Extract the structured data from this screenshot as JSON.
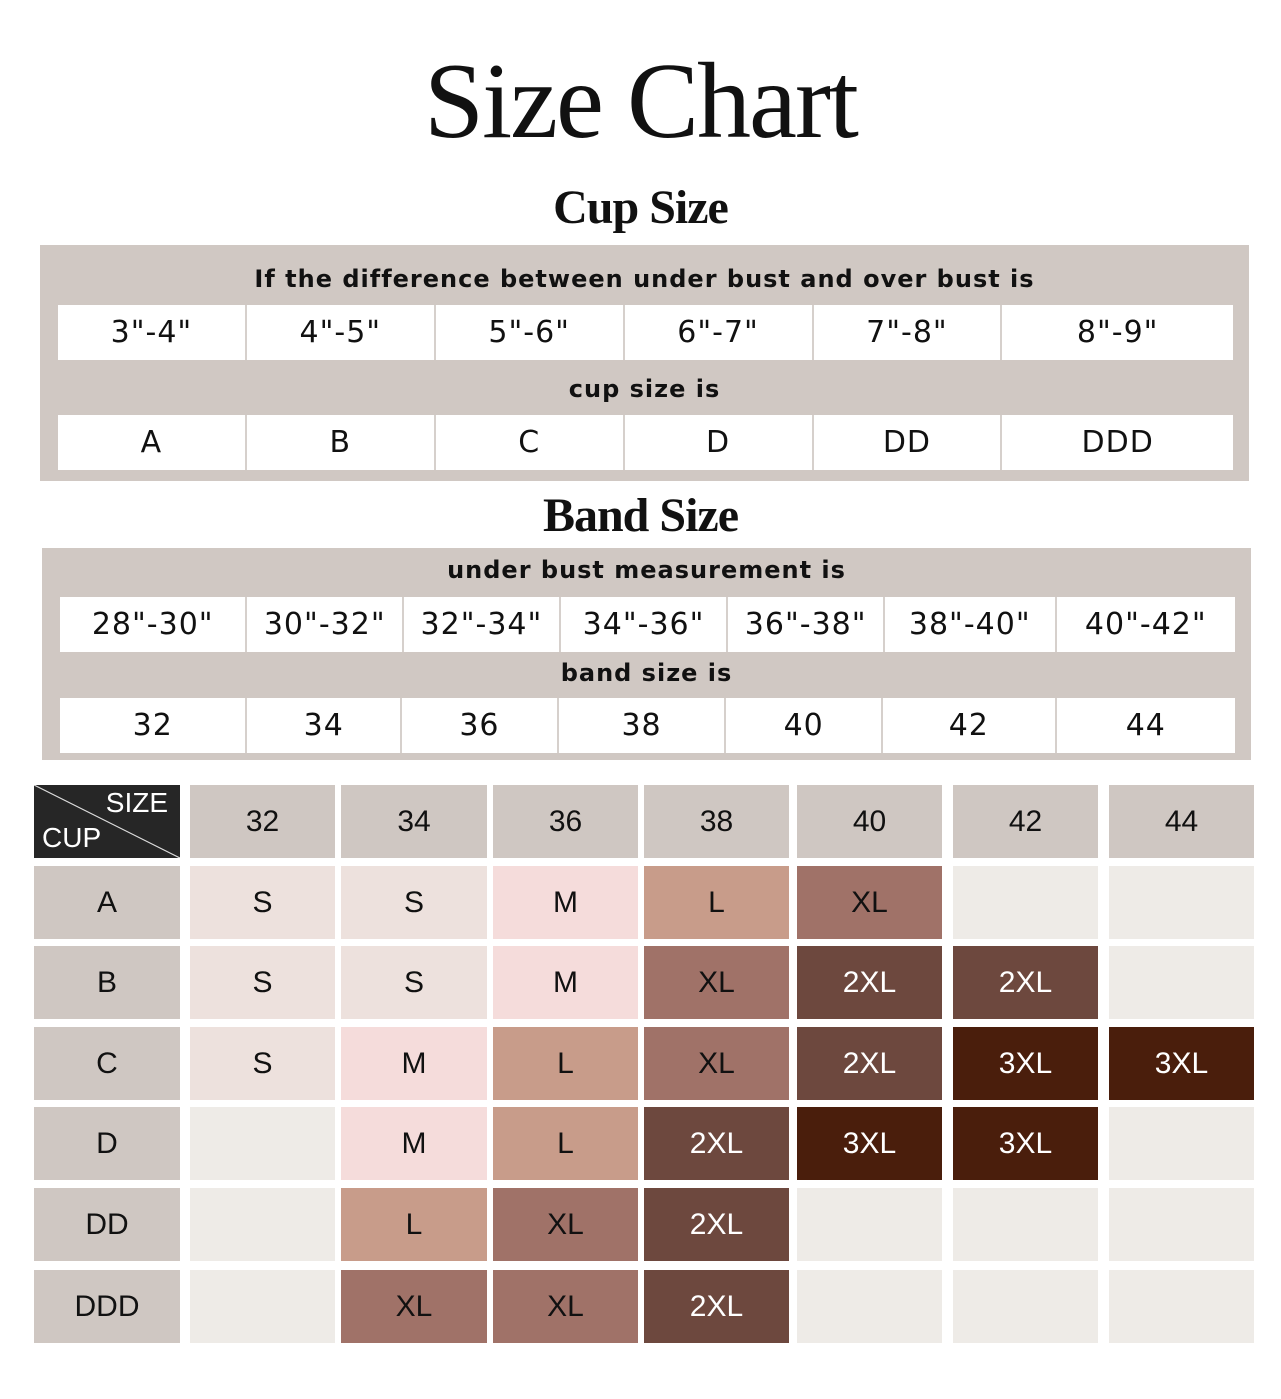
{
  "title": "Size Chart",
  "cup_section": {
    "heading": "Cup Size",
    "difference_label": "If the difference between under bust and over bust is",
    "differences": [
      "3\"-4\"",
      "4\"-5\"",
      "5\"-6\"",
      "6\"-7\"",
      "7\"-8\"",
      "8\"-9\""
    ],
    "result_label": "cup size is",
    "cups": [
      "A",
      "B",
      "C",
      "D",
      "DD",
      "DDD"
    ]
  },
  "band_section": {
    "heading": "Band Size",
    "measurement_label": "under bust measurement is",
    "measurements": [
      "28\"-30\"",
      "30\"-32\"",
      "32\"-34\"",
      "34\"-36\"",
      "36\"-38\"",
      "38\"-40\"",
      "40\"-42\""
    ],
    "result_label": "band size is",
    "bands": [
      "32",
      "34",
      "36",
      "38",
      "40",
      "42",
      "44"
    ]
  },
  "size_table": {
    "corner_top": "SIZE",
    "corner_bottom": "CUP",
    "columns": [
      "32",
      "34",
      "36",
      "38",
      "40",
      "42",
      "44"
    ],
    "rows": [
      {
        "cup": "A",
        "sizes": [
          "S",
          "S",
          "M",
          "L",
          "XL",
          "",
          ""
        ]
      },
      {
        "cup": "B",
        "sizes": [
          "S",
          "S",
          "M",
          "XL",
          "2XL",
          "2XL",
          ""
        ]
      },
      {
        "cup": "C",
        "sizes": [
          "S",
          "M",
          "L",
          "XL",
          "2XL",
          "3XL",
          "3XL"
        ]
      },
      {
        "cup": "D",
        "sizes": [
          "",
          "M",
          "L",
          "2XL",
          "3XL",
          "3XL",
          ""
        ]
      },
      {
        "cup": "DD",
        "sizes": [
          "",
          "L",
          "XL",
          "2XL",
          "",
          "",
          ""
        ]
      },
      {
        "cup": "DDD",
        "sizes": [
          "",
          "XL",
          "XL",
          "2XL",
          "",
          "",
          ""
        ]
      }
    ],
    "colors": {
      "header": "#cfc7c2",
      "empty": "#eeebe7",
      "S": "#ede1dd",
      "M": "#f5dcdb",
      "L": "#c89c8a",
      "XL": "#a07268",
      "2XL": "#6d483e",
      "3XL": "#4a1e0c"
    }
  }
}
